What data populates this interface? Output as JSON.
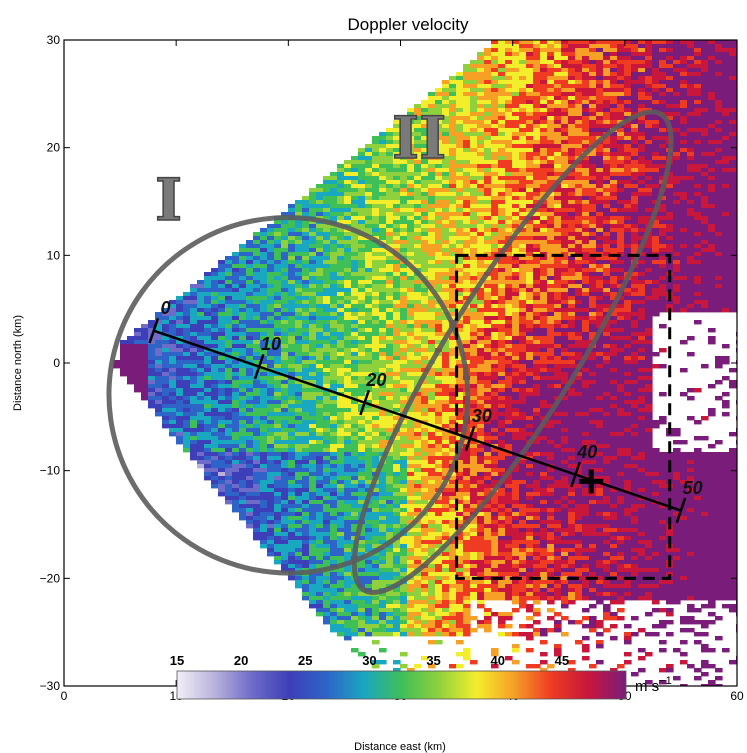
{
  "chart_data": {
    "type": "heatmap",
    "title": "Doppler velocity",
    "xlabel": "Distance east (km)",
    "ylabel": "Distance north (km)",
    "xlim": [
      0,
      60
    ],
    "ylim": [
      -30,
      30
    ],
    "x_ticks": [
      "0",
      "10",
      "20",
      "30",
      "40",
      "50",
      "60"
    ],
    "y_ticks": [
      "30",
      "20",
      "10",
      "0",
      "−10",
      "−20",
      "−30"
    ],
    "colorbar": {
      "range": [
        15,
        50
      ],
      "ticks": [
        "15",
        "20",
        "25",
        "30",
        "35",
        "40",
        "45"
      ],
      "unit_main": "m s",
      "unit_sup": "−1",
      "colors": [
        "#f2eef6",
        "#b9b3dc",
        "#6f6cc9",
        "#3d3fb8",
        "#2e64c8",
        "#1aa7c0",
        "#3fbf58",
        "#8fd13c",
        "#f3ee2c",
        "#f6a126",
        "#ee3b22",
        "#c8163c",
        "#7a1d7a"
      ]
    },
    "regions": [
      {
        "label": "I",
        "type": "ellipse",
        "center": [
          20,
          -3
        ],
        "semi_axes": [
          16,
          16.5
        ],
        "rotation_deg": 14
      },
      {
        "label": "II",
        "type": "ellipse",
        "center": [
          40,
          1
        ],
        "semi_axes": [
          25,
          6
        ],
        "rotation_deg": -58
      }
    ],
    "dashed_box": {
      "x": [
        35,
        54
      ],
      "y": [
        -20,
        10
      ]
    },
    "range_line": {
      "start": [
        8,
        3
      ],
      "end": [
        55,
        -13.7
      ],
      "tick_labels": [
        "0",
        "10",
        "20",
        "30",
        "40",
        "50"
      ]
    },
    "marker": {
      "symbol": "+",
      "position": [
        47,
        -11
      ]
    }
  }
}
